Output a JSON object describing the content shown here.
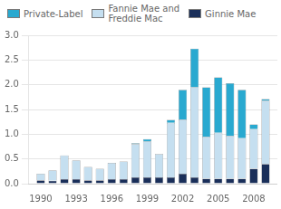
{
  "chart_data": {
    "type": "bar",
    "stacked": true,
    "x": [
      1990,
      1991,
      1992,
      1993,
      1994,
      1995,
      1996,
      1997,
      1998,
      1999,
      2000,
      2001,
      2002,
      2003,
      2004,
      2005,
      2006,
      2007,
      2008,
      2009
    ],
    "xlim": [
      1989,
      2010
    ],
    "xticks": [
      1990,
      1993,
      1996,
      1999,
      2002,
      2005,
      2008
    ],
    "ylim": [
      0,
      3.0
    ],
    "yticks": [
      {
        "value": 0,
        "label": "0.0"
      },
      0.5,
      {
        "value": 1.0,
        "label": "1.0"
      },
      1.5,
      {
        "value": 2.0,
        "label": "2.0"
      },
      2.5,
      {
        "value": 3.0,
        "label": "3.0"
      }
    ],
    "grid": true,
    "legend": "upper left",
    "series": [
      {
        "name": "Ginnie Mae",
        "color": "#1a2f5a",
        "values": [
          0.07,
          0.06,
          0.09,
          0.09,
          0.07,
          0.07,
          0.09,
          0.09,
          0.13,
          0.13,
          0.13,
          0.13,
          0.2,
          0.13,
          0.1,
          0.1,
          0.1,
          0.1,
          0.3,
          0.4
        ]
      },
      {
        "name": "Fannie Mae and\nFreddie Mac",
        "color": "#c5dff0",
        "values": [
          0.13,
          0.21,
          0.48,
          0.38,
          0.27,
          0.23,
          0.33,
          0.36,
          0.67,
          0.72,
          0.47,
          1.1,
          1.1,
          1.82,
          0.85,
          0.93,
          0.87,
          0.82,
          0.8,
          1.28
        ]
      },
      {
        "name": "Private-Label",
        "color": "#29a9d0",
        "values": [
          0.0,
          0.0,
          0.0,
          0.0,
          0.0,
          0.0,
          0.0,
          0.0,
          0.02,
          0.05,
          0.0,
          0.06,
          0.6,
          0.78,
          1.0,
          1.12,
          1.06,
          0.98,
          0.1,
          0.03
        ]
      }
    ]
  }
}
